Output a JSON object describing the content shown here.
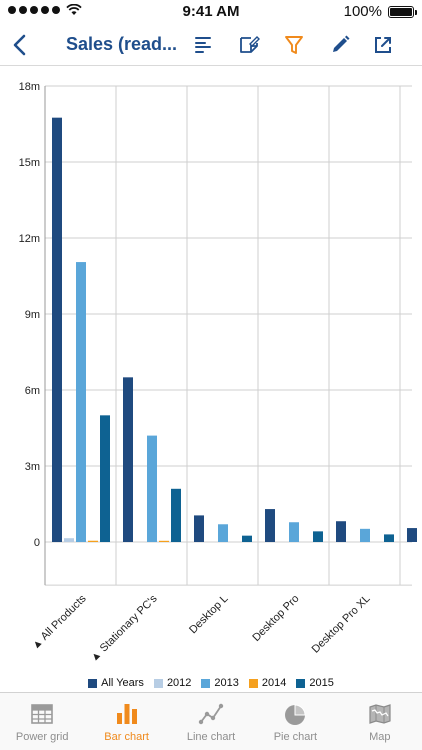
{
  "status_bar": {
    "time": "9:41 AM",
    "battery_text": "100%",
    "battery_level": 1.0
  },
  "nav": {
    "title": "Sales (read...",
    "icons": [
      "back-chevron-icon",
      "text-align-icon",
      "note-edit-icon",
      "filter-icon",
      "pencil-icon",
      "share-icon"
    ],
    "colors": {
      "primary": "#1f4e8c",
      "accent": "#f08a1c"
    }
  },
  "chart_data": {
    "type": "bar",
    "categories": [
      "▲ All Products",
      "▲ Stationary PC's",
      "Desktop L",
      "Desktop Pro",
      "Desktop Pro XL",
      ""
    ],
    "series": [
      {
        "name": "All Years",
        "color": "#1f4a7f",
        "values": [
          16.75,
          6.5,
          1.05,
          1.3,
          0.82,
          0.55
        ]
      },
      {
        "name": "2012",
        "color": "#b7cde4",
        "values": [
          0.15,
          0,
          0,
          0,
          0,
          0
        ]
      },
      {
        "name": "2013",
        "color": "#5aa6d9",
        "values": [
          11.05,
          4.2,
          0.7,
          0.78,
          0.52,
          0
        ]
      },
      {
        "name": "2014",
        "color": "#f5a01e",
        "values": [
          0.05,
          0.02,
          0,
          0,
          0,
          0
        ]
      },
      {
        "name": "2015",
        "color": "#0e6292",
        "values": [
          5.0,
          2.1,
          0.25,
          0.42,
          0.3,
          0
        ]
      }
    ],
    "y_ticks": [
      "18m",
      "15m",
      "12m",
      "9m",
      "6m",
      "3m",
      "0"
    ],
    "y_tick_values": [
      18,
      15,
      12,
      9,
      6,
      3,
      0
    ],
    "ylim": [
      -1.7,
      18
    ],
    "grid": true,
    "legend_position": "bottom"
  },
  "legend": {
    "items": [
      {
        "label": "All Years",
        "color": "#1f4a7f"
      },
      {
        "label": "2012",
        "color": "#b7cde4"
      },
      {
        "label": "2013",
        "color": "#5aa6d9"
      },
      {
        "label": "2014",
        "color": "#f5a01e"
      },
      {
        "label": "2015",
        "color": "#0e6292"
      }
    ]
  },
  "tabs": [
    {
      "label": "Power grid",
      "icon": "grid-icon",
      "active": false
    },
    {
      "label": "Bar chart",
      "icon": "bar-chart-icon",
      "active": true
    },
    {
      "label": "Line chart",
      "icon": "line-chart-icon",
      "active": false
    },
    {
      "label": "Pie chart",
      "icon": "pie-chart-icon",
      "active": false
    },
    {
      "label": "Map",
      "icon": "map-icon",
      "active": false
    }
  ]
}
